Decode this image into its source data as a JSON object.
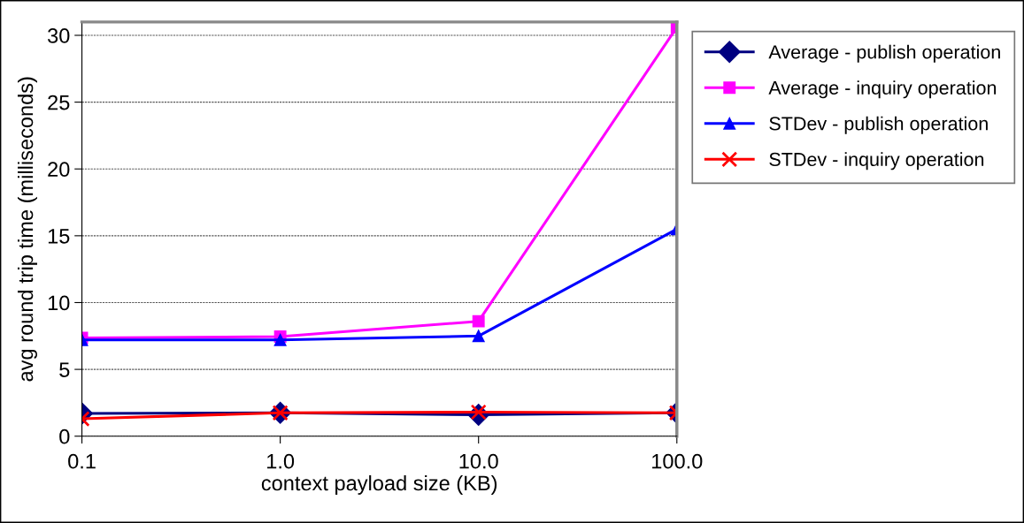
{
  "chart_data": {
    "type": "line",
    "xlabel": "context payload size (KB)",
    "ylabel": "avg round trip time (milliseconds)",
    "categories": [
      "0.1",
      "1.0",
      "10.0",
      "100.0"
    ],
    "series": [
      {
        "name": "Average - publish operation",
        "color": "#000080",
        "marker": "diamond",
        "values": [
          1.7,
          1.75,
          1.6,
          1.75
        ]
      },
      {
        "name": "Average - inquiry operation",
        "color": "#ff00ff",
        "marker": "square",
        "values": [
          7.35,
          7.45,
          8.6,
          30.6
        ]
      },
      {
        "name": "STDev - publish operation",
        "color": "#0000ff",
        "marker": "triangle",
        "values": [
          7.2,
          7.2,
          7.5,
          15.5
        ]
      },
      {
        "name": "STDev - inquiry operation",
        "color": "#ff0000",
        "marker": "cross",
        "values": [
          1.3,
          1.75,
          1.8,
          1.75
        ]
      }
    ],
    "ylim": [
      0,
      31
    ],
    "yticks": [
      0,
      5,
      10,
      15,
      20,
      25,
      30
    ],
    "grid": "y",
    "legend": "top right",
    "line_style": "solid"
  }
}
